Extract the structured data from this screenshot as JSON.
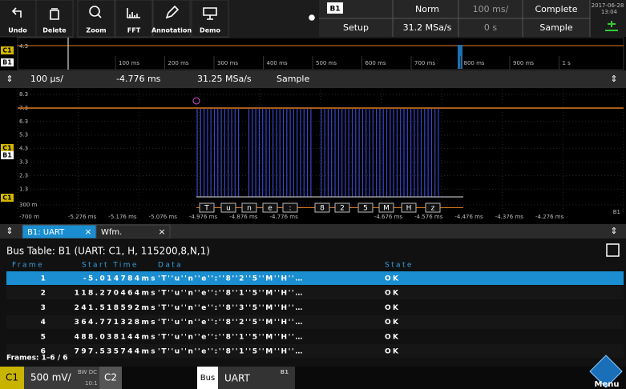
{
  "toolbar": {
    "buttons": [
      "Undo",
      "Delete",
      "Zoom",
      "FFT",
      "Annotation",
      "Demo"
    ]
  },
  "status": {
    "source": "B1",
    "trigger_mode": "Norm",
    "time_scale": "100 ms/",
    "acq_state": "Complete",
    "date": "2017-06-28",
    "time": "13:04",
    "setup": "Setup",
    "sample_rate": "31.2 MSa/s",
    "offset": "0 s",
    "acq_mode": "Sample"
  },
  "overview": {
    "level": "4.3",
    "channel": "C1",
    "bus": "B1",
    "time_labels": [
      "100 ms",
      "200 ms",
      "300 ms",
      "400 ms",
      "500 ms",
      "600 ms",
      "700 ms",
      "800 ms",
      "900 ms",
      "1 s"
    ]
  },
  "zoom_bar": {
    "time_scale": "100 µs/",
    "position": "-4.776 ms",
    "sample_rate": "31.25 MSa/s",
    "mode": "Sample"
  },
  "scope": {
    "y_labels": [
      "8.3",
      "7.3",
      "6.3",
      "5.3",
      "4.3",
      "3.3",
      "2.3",
      "1.3",
      "300 m"
    ],
    "x_labels": [
      "-700 m",
      "-5.276 ms",
      "-5.176 ms",
      "-5.076 ms",
      "-4.976 ms",
      "-4.876 ms",
      "-4.776 ms",
      "-4.676 ms",
      "-4.576 ms",
      "-4.476 ms",
      "-4.376 ms",
      "-4.276 ms"
    ],
    "channel_tags": [
      "C1",
      "B1",
      "C1"
    ],
    "bus_tag": "B1",
    "decoded": [
      "T",
      "u",
      "n",
      "e",
      ":",
      "8",
      "2",
      "5",
      "M",
      "H",
      "z"
    ]
  },
  "tabs": [
    {
      "label": "B1: UART",
      "close": "×"
    },
    {
      "label": "Wfm.",
      "close": "×"
    }
  ],
  "bus_table": {
    "title": "Bus Table: B1 (UART: C1, H, 115200,8,N,1)",
    "columns": [
      "Frame",
      "Start Time",
      "Data",
      "State"
    ],
    "rows": [
      [
        "1",
        "-5.014784ms",
        "'T''u''n''e'':''8''2''5''M''H''…",
        "OK"
      ],
      [
        "2",
        "118.270464ms",
        "'T''u''n''e'':''8''1''5''M''H''…",
        "OK"
      ],
      [
        "3",
        "241.518592ms",
        "'T''u''n''e'':''8''3''5''M''H''…",
        "OK"
      ],
      [
        "4",
        "364.771328ms",
        "'T''u''n''e'':''8''2''5''M''H''…",
        "OK"
      ],
      [
        "5",
        "488.038144ms",
        "'T''u''n''e'':''8''1''5''M''H''…",
        "OK"
      ],
      [
        "6",
        "797.535744ms",
        "'T''u''n''e'':''8''1''5''M''H''…",
        "OK"
      ]
    ],
    "footer": "Frames: 1–6 / 6"
  },
  "bottom_bar": {
    "channel": "C1",
    "scale": "500 mV/",
    "bw": "BW DC",
    "probe": "10:1",
    "channel2": "C2",
    "bus_label": "Bus",
    "bus_protocol": "UART",
    "bus_id": "B1",
    "menu": "Menu"
  }
}
